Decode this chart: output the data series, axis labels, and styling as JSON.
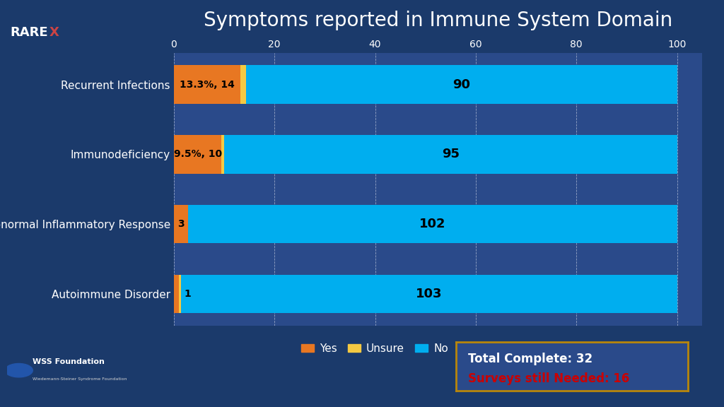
{
  "title": "Symptoms reported in Immune System Domain",
  "categories": [
    "Recurrent Infections",
    "Immunodeficiency",
    "Abnormal Inflammatory Response",
    "Autoimmune Disorder"
  ],
  "yes_values": [
    13.3,
    9.5,
    2.9,
    1.0
  ],
  "unsure_values": [
    1.0,
    0.5,
    0.0,
    0.5
  ],
  "no_values": [
    85.7,
    90.0,
    97.1,
    98.5
  ],
  "yes_labels": [
    "13.3%, 14",
    "9.5%, 10",
    "3",
    ""
  ],
  "yes_labels_outside": [
    "",
    "",
    "",
    "1"
  ],
  "no_labels": [
    "90",
    "95",
    "102",
    "103"
  ],
  "yes_color": "#E87722",
  "unsure_color": "#F5C942",
  "no_color": "#00AEEF",
  "bg_color": "#1B3A6B",
  "plot_bg_color": "#2A4A8A",
  "grid_color": "#FFFFFF",
  "text_color": "#FFFFFF",
  "bar_text_color": "#000000",
  "xlim": [
    0,
    105
  ],
  "xticks": [
    0,
    20,
    40,
    60,
    80,
    100
  ],
  "title_fontsize": 20,
  "label_fontsize": 11,
  "tick_fontsize": 10,
  "bar_height": 0.55,
  "info_box_text1": "Total Complete: 32",
  "info_box_text2": "Surveys still Needed: 16",
  "info_box_text1_color": "#FFFFFF",
  "info_box_text2_color": "#CC0000",
  "info_box_border_color": "#B8860B",
  "legend_labels": [
    "Yes",
    "Unsure",
    "No"
  ]
}
